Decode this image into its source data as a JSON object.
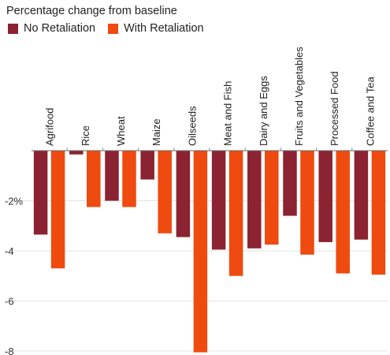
{
  "chart_data": {
    "type": "bar",
    "subtitle": "Percentage change from baseline",
    "categories": [
      "Agrifood",
      "Rice",
      "Wheat",
      "Maize",
      "Oilseeds",
      "Meat and Fish",
      "Dairy and Eggs",
      "Fruits and Vegetables",
      "Processed Food",
      "Coffee and Tea"
    ],
    "series": [
      {
        "name": "No Retaliation",
        "color": "#8b2332",
        "values": [
          -3.35,
          -0.15,
          -2.0,
          -1.15,
          -3.45,
          -3.95,
          -3.9,
          -2.6,
          -3.65,
          -3.55
        ]
      },
      {
        "name": "With Retaliation",
        "color": "#ef4a0f",
        "values": [
          -4.7,
          -2.25,
          -2.25,
          -3.3,
          -8.05,
          -5.0,
          -3.75,
          -4.15,
          -4.9,
          -4.95
        ]
      }
    ],
    "yticks": [
      {
        "value": -2,
        "label": "-2%"
      },
      {
        "value": -4,
        "label": "-4"
      },
      {
        "value": -6,
        "label": "-6"
      },
      {
        "value": -8,
        "label": "-8"
      }
    ],
    "ylim": [
      -8.2,
      0
    ],
    "grid": true,
    "legend_position": "top-left"
  }
}
